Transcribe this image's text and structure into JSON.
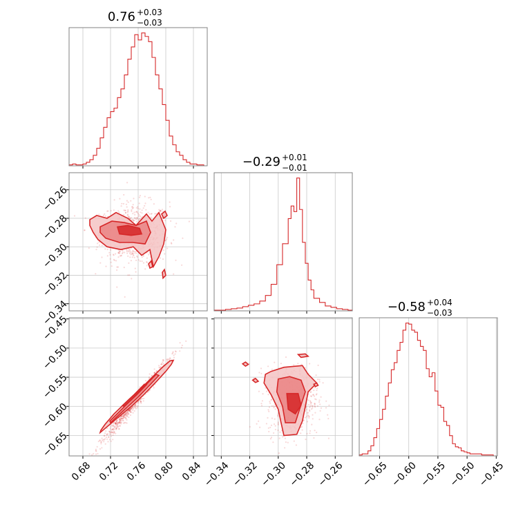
{
  "colors": {
    "accent": "#d62728",
    "fill_light": "#f4c3c3",
    "fill_mid": "#e8797a",
    "grid": "#c8c8c8",
    "frame": "#808080"
  },
  "chart_data": [
    {
      "type": "histogram",
      "id": "hist-p0",
      "title": {
        "main": "0.76",
        "plus": "+0.03",
        "minus": "−0.03"
      },
      "xlim": [
        0.66,
        0.86
      ],
      "grid": true,
      "bins_x": [
        0.66,
        0.665,
        0.67,
        0.675,
        0.68,
        0.685,
        0.69,
        0.695,
        0.7,
        0.705,
        0.71,
        0.715,
        0.72,
        0.725,
        0.73,
        0.735,
        0.74,
        0.745,
        0.75,
        0.755,
        0.76,
        0.765,
        0.77,
        0.775,
        0.78,
        0.785,
        0.79,
        0.795,
        0.8,
        0.805,
        0.81,
        0.815,
        0.82,
        0.825,
        0.83,
        0.835,
        0.84,
        0.845,
        0.85,
        0.855,
        0.86
      ],
      "counts": [
        1,
        2,
        1,
        1,
        2,
        4,
        7,
        12,
        20,
        32,
        44,
        55,
        62,
        66,
        78,
        88,
        104,
        122,
        136,
        150,
        144,
        152,
        148,
        142,
        124,
        104,
        88,
        70,
        52,
        34,
        24,
        16,
        12,
        7,
        4,
        2,
        2,
        1,
        1,
        0
      ]
    },
    {
      "type": "scatter-contour",
      "id": "joint-p0-p1",
      "xlim": [
        0.66,
        0.86
      ],
      "ylim": [
        -0.345,
        -0.248
      ],
      "yticks": [
        -0.26,
        -0.28,
        -0.3,
        -0.32,
        -0.34
      ],
      "ytick_labels": [
        "−0.26",
        "−0.28",
        "−0.30",
        "−0.32",
        "−0.34"
      ],
      "contour_outer": [
        [
          0.69,
          -0.281
        ],
        [
          0.7,
          -0.278
        ],
        [
          0.715,
          -0.28
        ],
        [
          0.728,
          -0.276
        ],
        [
          0.745,
          -0.28
        ],
        [
          0.757,
          -0.285
        ],
        [
          0.772,
          -0.277
        ],
        [
          0.78,
          -0.282
        ],
        [
          0.79,
          -0.276
        ],
        [
          0.8,
          -0.288
        ],
        [
          0.797,
          -0.298
        ],
        [
          0.79,
          -0.307
        ],
        [
          0.782,
          -0.314
        ],
        [
          0.777,
          -0.302
        ],
        [
          0.765,
          -0.306
        ],
        [
          0.753,
          -0.3
        ],
        [
          0.735,
          -0.302
        ],
        [
          0.715,
          -0.3
        ],
        [
          0.702,
          -0.295
        ],
        [
          0.695,
          -0.29
        ],
        [
          0.69,
          -0.285
        ]
      ],
      "contour_mid": [
        [
          0.705,
          -0.286
        ],
        [
          0.722,
          -0.282
        ],
        [
          0.74,
          -0.283
        ],
        [
          0.757,
          -0.285
        ],
        [
          0.772,
          -0.282
        ],
        [
          0.778,
          -0.29
        ],
        [
          0.77,
          -0.298
        ],
        [
          0.752,
          -0.297
        ],
        [
          0.733,
          -0.297
        ],
        [
          0.713,
          -0.294
        ],
        [
          0.705,
          -0.29
        ]
      ],
      "contour_inner": [
        [
          0.73,
          -0.286
        ],
        [
          0.745,
          -0.285
        ],
        [
          0.762,
          -0.287
        ],
        [
          0.765,
          -0.291
        ],
        [
          0.75,
          -0.292
        ],
        [
          0.733,
          -0.291
        ]
      ],
      "contour_islands": [
        [
          [
            0.794,
            -0.277
          ],
          [
            0.799,
            -0.275
          ],
          [
            0.802,
            -0.278
          ],
          [
            0.797,
            -0.28
          ]
        ],
        [
          [
            0.795,
            -0.318
          ],
          [
            0.798,
            -0.316
          ],
          [
            0.8,
            -0.32
          ],
          [
            0.796,
            -0.322
          ]
        ],
        [
          [
            0.775,
            -0.312
          ],
          [
            0.779,
            -0.31
          ],
          [
            0.781,
            -0.314
          ],
          [
            0.777,
            -0.315
          ]
        ]
      ],
      "point_count": 700,
      "center": [
        0.755,
        -0.291
      ],
      "spread": [
        0.025,
        0.011
      ]
    },
    {
      "type": "histogram",
      "id": "hist-p1",
      "title": {
        "main": "−0.29",
        "plus": "+0.01",
        "minus": "−0.01"
      },
      "xlim": [
        -0.345,
        -0.248
      ],
      "grid": true,
      "bins_x": [
        -0.345,
        -0.341,
        -0.337,
        -0.333,
        -0.329,
        -0.325,
        -0.321,
        -0.317,
        -0.313,
        -0.309,
        -0.305,
        -0.301,
        -0.297,
        -0.293,
        -0.291,
        -0.289,
        -0.287,
        -0.285,
        -0.283,
        -0.281,
        -0.279,
        -0.277,
        -0.275,
        -0.271,
        -0.267,
        -0.263,
        -0.259,
        -0.255,
        -0.251,
        -0.248
      ],
      "counts": [
        1,
        1,
        2,
        3,
        4,
        6,
        8,
        10,
        14,
        22,
        38,
        66,
        96,
        132,
        150,
        142,
        190,
        145,
        98,
        68,
        44,
        30,
        18,
        12,
        7,
        5,
        3,
        2,
        1
      ]
    },
    {
      "type": "scatter-contour",
      "id": "joint-p0-p2",
      "xlim": [
        0.66,
        0.86
      ],
      "ylim": [
        -0.685,
        -0.448
      ],
      "yticks": [
        -0.45,
        -0.5,
        -0.55,
        -0.6,
        -0.65
      ],
      "ytick_labels": [
        "−0.45",
        "−0.50",
        "−0.55",
        "−0.60",
        "−0.65"
      ],
      "xticks": [
        0.68,
        0.72,
        0.76,
        0.8,
        0.84
      ],
      "xtick_labels": [
        "0.68",
        "0.72",
        "0.76",
        "0.80",
        "0.84"
      ],
      "contour_outer": [
        [
          0.705,
          -0.645
        ],
        [
          0.712,
          -0.638
        ],
        [
          0.73,
          -0.62
        ],
        [
          0.75,
          -0.6
        ],
        [
          0.768,
          -0.58
        ],
        [
          0.786,
          -0.558
        ],
        [
          0.8,
          -0.54
        ],
        [
          0.808,
          -0.528
        ],
        [
          0.811,
          -0.521
        ],
        [
          0.806,
          -0.522
        ],
        [
          0.796,
          -0.532
        ],
        [
          0.782,
          -0.548
        ],
        [
          0.765,
          -0.568
        ],
        [
          0.745,
          -0.59
        ],
        [
          0.725,
          -0.613
        ],
        [
          0.712,
          -0.631
        ],
        [
          0.706,
          -0.641
        ]
      ],
      "contour_mid": [
        [
          0.72,
          -0.628
        ],
        [
          0.74,
          -0.606
        ],
        [
          0.76,
          -0.584
        ],
        [
          0.778,
          -0.562
        ],
        [
          0.79,
          -0.547
        ],
        [
          0.786,
          -0.545
        ],
        [
          0.772,
          -0.562
        ],
        [
          0.752,
          -0.586
        ],
        [
          0.732,
          -0.61
        ],
        [
          0.719,
          -0.625
        ]
      ],
      "contour_inner": [
        [
          0.74,
          -0.6
        ],
        [
          0.758,
          -0.58
        ],
        [
          0.772,
          -0.563
        ],
        [
          0.769,
          -0.562
        ],
        [
          0.754,
          -0.58
        ],
        [
          0.737,
          -0.599
        ]
      ],
      "contour_islands": [],
      "point_count": 700,
      "linear": {
        "slope": 1.45,
        "intercept": -1.688
      },
      "center": [
        0.755,
        -0.593
      ],
      "spread": [
        0.025,
        0.006
      ]
    },
    {
      "type": "scatter-contour",
      "id": "joint-p1-p2",
      "xlim": [
        -0.345,
        -0.248
      ],
      "ylim": [
        -0.685,
        -0.448
      ],
      "xticks": [
        -0.34,
        -0.32,
        -0.3,
        -0.28,
        -0.26
      ],
      "xtick_labels": [
        "−0.34",
        "−0.32",
        "−0.30",
        "−0.28",
        "−0.26"
      ],
      "contour_outer": [
        [
          -0.305,
          -0.54
        ],
        [
          -0.296,
          -0.533
        ],
        [
          -0.283,
          -0.53
        ],
        [
          -0.279,
          -0.545
        ],
        [
          -0.273,
          -0.56
        ],
        [
          -0.279,
          -0.575
        ],
        [
          -0.281,
          -0.6
        ],
        [
          -0.283,
          -0.625
        ],
        [
          -0.287,
          -0.648
        ],
        [
          -0.296,
          -0.65
        ],
        [
          -0.298,
          -0.628
        ],
        [
          -0.3,
          -0.605
        ],
        [
          -0.305,
          -0.58
        ],
        [
          -0.31,
          -0.56
        ],
        [
          -0.309,
          -0.545
        ]
      ],
      "contour_mid": [
        [
          -0.3,
          -0.553
        ],
        [
          -0.292,
          -0.549
        ],
        [
          -0.284,
          -0.555
        ],
        [
          -0.281,
          -0.575
        ],
        [
          -0.285,
          -0.605
        ],
        [
          -0.288,
          -0.628
        ],
        [
          -0.295,
          -0.628
        ],
        [
          -0.297,
          -0.6
        ],
        [
          -0.301,
          -0.575
        ]
      ],
      "contour_inner": [
        [
          -0.294,
          -0.578
        ],
        [
          -0.286,
          -0.578
        ],
        [
          -0.284,
          -0.598
        ],
        [
          -0.288,
          -0.613
        ],
        [
          -0.293,
          -0.605
        ]
      ],
      "contour_islands": [
        [
          [
            -0.318,
            -0.555
          ],
          [
            -0.316,
            -0.552
          ],
          [
            -0.314,
            -0.557
          ],
          [
            -0.316,
            -0.559
          ]
        ],
        [
          [
            -0.325,
            -0.527
          ],
          [
            -0.323,
            -0.524
          ],
          [
            -0.321,
            -0.528
          ],
          [
            -0.323,
            -0.531
          ]
        ],
        [
          [
            -0.286,
            -0.511
          ],
          [
            -0.281,
            -0.51
          ],
          [
            -0.279,
            -0.514
          ],
          [
            -0.284,
            -0.516
          ]
        ],
        [
          [
            -0.275,
            -0.562
          ],
          [
            -0.273,
            -0.56
          ],
          [
            -0.272,
            -0.564
          ],
          [
            -0.274,
            -0.566
          ]
        ]
      ],
      "point_count": 600,
      "center": [
        -0.29,
        -0.59
      ],
      "spread": [
        0.009,
        0.03
      ]
    },
    {
      "type": "histogram",
      "id": "hist-p2",
      "title": {
        "main": "−0.58",
        "plus": "+0.04",
        "minus": "−0.03"
      },
      "xlim": [
        -0.685,
        -0.448
      ],
      "grid": true,
      "xticks": [
        -0.65,
        -0.6,
        -0.55,
        -0.5,
        -0.45
      ],
      "xtick_labels": [
        "−0.65",
        "−0.60",
        "−0.55",
        "−0.50",
        "−0.45"
      ],
      "bins_x": [
        -0.685,
        -0.68,
        -0.675,
        -0.67,
        -0.665,
        -0.66,
        -0.655,
        -0.65,
        -0.645,
        -0.64,
        -0.635,
        -0.63,
        -0.625,
        -0.62,
        -0.615,
        -0.61,
        -0.605,
        -0.6,
        -0.595,
        -0.59,
        -0.585,
        -0.58,
        -0.575,
        -0.57,
        -0.565,
        -0.56,
        -0.555,
        -0.55,
        -0.545,
        -0.54,
        -0.535,
        -0.53,
        -0.525,
        -0.52,
        -0.515,
        -0.51,
        -0.505,
        -0.5,
        -0.495,
        -0.49,
        -0.485,
        -0.48,
        -0.475,
        -0.47,
        -0.465,
        -0.46,
        -0.455,
        -0.448
      ],
      "counts": [
        1,
        2,
        2,
        5,
        10,
        18,
        27,
        36,
        46,
        59,
        72,
        85,
        92,
        104,
        112,
        124,
        131,
        130,
        124,
        122,
        114,
        108,
        104,
        86,
        78,
        82,
        64,
        50,
        48,
        34,
        30,
        20,
        12,
        9,
        8,
        5,
        4,
        3,
        2,
        2,
        2,
        2,
        1,
        1,
        1,
        1,
        0
      ]
    }
  ]
}
